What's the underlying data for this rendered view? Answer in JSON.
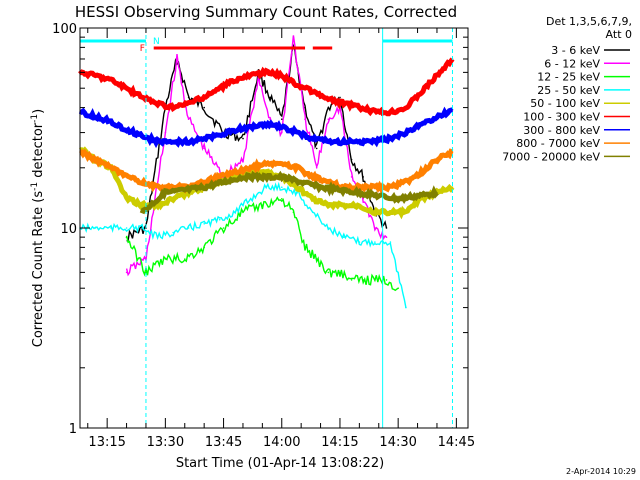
{
  "chart_data": {
    "type": "line",
    "title": "HESSI Observing Summary Count Rates, Corrected",
    "xlabel": "Start Time (01-Apr-14 13:08:22)",
    "ylabel_main": "Corrected Count Rate (s",
    "ylabel_sup1": "-1",
    "ylabel_mid": " detector",
    "ylabel_sup2": "-1",
    "ylabel_end": ")",
    "y_scale": "log",
    "ylim": [
      1,
      100
    ],
    "y_ticks": [
      1,
      10,
      100
    ],
    "y_tick_labels": [
      "1",
      "10",
      "100"
    ],
    "xlim_minutes": [
      "13:08",
      "14:48"
    ],
    "x_ticks": [
      "13:15",
      "13:30",
      "13:45",
      "14:00",
      "14:15",
      "14:30",
      "14:45"
    ],
    "legend": {
      "header_line1": "Det 1,3,5,6,7,9,",
      "header_line2": "Att 0",
      "placement": "top-right outside"
    },
    "series": [
      {
        "name": "3 - 6 keV",
        "color": "#000000",
        "x": [
          "13:20",
          "13:25",
          "13:30",
          "13:33",
          "13:36",
          "13:40",
          "13:45",
          "13:50",
          "13:54",
          "13:57",
          "14:00",
          "14:03",
          "14:06",
          "14:09",
          "14:12",
          "14:15",
          "14:18",
          "14:21",
          "14:24",
          "14:27"
        ],
        "y": [
          9,
          10,
          40,
          70,
          45,
          40,
          30,
          28,
          60,
          45,
          35,
          80,
          40,
          25,
          40,
          45,
          22,
          18,
          12,
          10
        ]
      },
      {
        "name": "6 - 12 keV",
        "color": "#ff00ff",
        "x": [
          "13:20",
          "13:25",
          "13:30",
          "13:33",
          "13:36",
          "13:40",
          "13:45",
          "13:50",
          "13:54",
          "13:57",
          "14:00",
          "14:03",
          "14:06",
          "14:09",
          "14:12",
          "14:15",
          "14:18",
          "14:21",
          "14:24",
          "14:27"
        ],
        "y": [
          6,
          7,
          30,
          70,
          35,
          25,
          18,
          22,
          55,
          35,
          30,
          90,
          35,
          20,
          35,
          40,
          18,
          14,
          10,
          9
        ]
      },
      {
        "name": "12 - 25 keV",
        "color": "#00ff00",
        "x": [
          "13:20",
          "13:25",
          "13:30",
          "13:35",
          "13:40",
          "13:45",
          "13:50",
          "13:55",
          "14:00",
          "14:03",
          "14:06",
          "14:09",
          "14:12",
          "14:15",
          "14:18",
          "14:21",
          "14:24",
          "14:27",
          "14:30"
        ],
        "y": [
          9,
          6,
          7,
          7,
          8,
          10,
          12,
          13,
          14,
          12,
          8,
          7,
          6,
          6,
          5.5,
          5.5,
          5.5,
          5.5,
          5
        ]
      },
      {
        "name": "25 - 50 keV",
        "color": "#00ffff",
        "x": [
          "13:08",
          "13:12",
          "13:16",
          "13:20",
          "13:24",
          "13:28",
          "13:32",
          "13:36",
          "13:40",
          "13:44",
          "13:48",
          "13:52",
          "13:56",
          "14:00",
          "14:04",
          "14:08",
          "14:12",
          "14:16",
          "14:20",
          "14:24",
          "14:28",
          "14:32"
        ],
        "y": [
          10,
          10,
          10,
          10,
          10,
          9,
          9.5,
          10,
          10.5,
          11,
          12,
          14,
          16,
          16,
          15,
          12,
          10,
          9,
          8.5,
          8.5,
          8.5,
          4
        ]
      },
      {
        "name": "50 - 100 keV",
        "color": "#cccc00",
        "x": [
          "13:08",
          "13:12",
          "13:16",
          "13:20",
          "13:24",
          "13:28",
          "13:32",
          "13:36",
          "13:40",
          "13:44",
          "13:48",
          "13:52",
          "13:56",
          "14:00",
          "14:04",
          "14:08",
          "14:12",
          "14:16",
          "14:20",
          "14:24",
          "14:28",
          "14:32",
          "14:36",
          "14:40",
          "14:44"
        ],
        "y": [
          25,
          22,
          20,
          14,
          13,
          13,
          14,
          15,
          16,
          17,
          18,
          19,
          19,
          18,
          16,
          14,
          13,
          13,
          13,
          12,
          12,
          12,
          14,
          15,
          16
        ]
      },
      {
        "name": "100 - 300 keV",
        "color": "#ff0000",
        "x": [
          "13:08",
          "13:12",
          "13:16",
          "13:20",
          "13:24",
          "13:28",
          "13:32",
          "13:36",
          "13:40",
          "13:44",
          "13:48",
          "13:52",
          "13:56",
          "14:00",
          "14:04",
          "14:08",
          "14:12",
          "14:16",
          "14:20",
          "14:24",
          "14:28",
          "14:32",
          "14:36",
          "14:40",
          "14:44"
        ],
        "y": [
          60,
          58,
          55,
          50,
          45,
          42,
          40,
          42,
          45,
          50,
          55,
          58,
          60,
          58,
          52,
          48,
          44,
          42,
          40,
          38,
          38,
          40,
          48,
          58,
          70
        ]
      },
      {
        "name": "300 - 800 keV",
        "color": "#0000ff",
        "x": [
          "13:08",
          "13:12",
          "13:16",
          "13:20",
          "13:24",
          "13:28",
          "13:32",
          "13:36",
          "13:40",
          "13:44",
          "13:48",
          "13:52",
          "13:56",
          "14:00",
          "14:04",
          "14:08",
          "14:12",
          "14:16",
          "14:20",
          "14:24",
          "14:28",
          "14:32",
          "14:36",
          "14:40",
          "14:44"
        ],
        "y": [
          38,
          36,
          34,
          31,
          29,
          27,
          27,
          27,
          28,
          29,
          31,
          32,
          33,
          32,
          30,
          28,
          27,
          27,
          27,
          27,
          28,
          30,
          33,
          36,
          39
        ]
      },
      {
        "name": "800 - 7000 keV",
        "color": "#ff8000",
        "x": [
          "13:08",
          "13:12",
          "13:16",
          "13:20",
          "13:24",
          "13:28",
          "13:32",
          "13:36",
          "13:40",
          "13:44",
          "13:48",
          "13:52",
          "13:56",
          "14:00",
          "14:04",
          "14:08",
          "14:12",
          "14:16",
          "14:20",
          "14:24",
          "14:28",
          "14:32",
          "14:36",
          "14:40",
          "14:44"
        ],
        "y": [
          24,
          22,
          20,
          18,
          17,
          16,
          16,
          16,
          17,
          18,
          19,
          20,
          21,
          21,
          20,
          18,
          17,
          16,
          16,
          16,
          16,
          17,
          19,
          22,
          24
        ]
      },
      {
        "name": "7000 - 20000 keV",
        "color": "#808000",
        "x": [
          "13:24",
          "13:30",
          "13:40",
          "13:50",
          "14:00",
          "14:10",
          "14:20",
          "14:30",
          "14:40"
        ],
        "y": [
          12,
          15,
          16,
          18,
          18,
          16,
          15,
          14,
          15
        ]
      }
    ],
    "annotations": {
      "flag_N": "N",
      "flag_F": "F",
      "night_color": "#00ffff",
      "flare_color": "#ff0000",
      "night_intervals": [
        [
          "13:08",
          "13:25"
        ],
        [
          "14:26",
          "14:44"
        ]
      ],
      "flare_intervals": [
        [
          "13:27",
          "14:06"
        ],
        [
          "14:08",
          "14:13"
        ]
      ]
    },
    "grid": false
  },
  "footer": {
    "timestamp": "2-Apr-2014 10:29"
  }
}
